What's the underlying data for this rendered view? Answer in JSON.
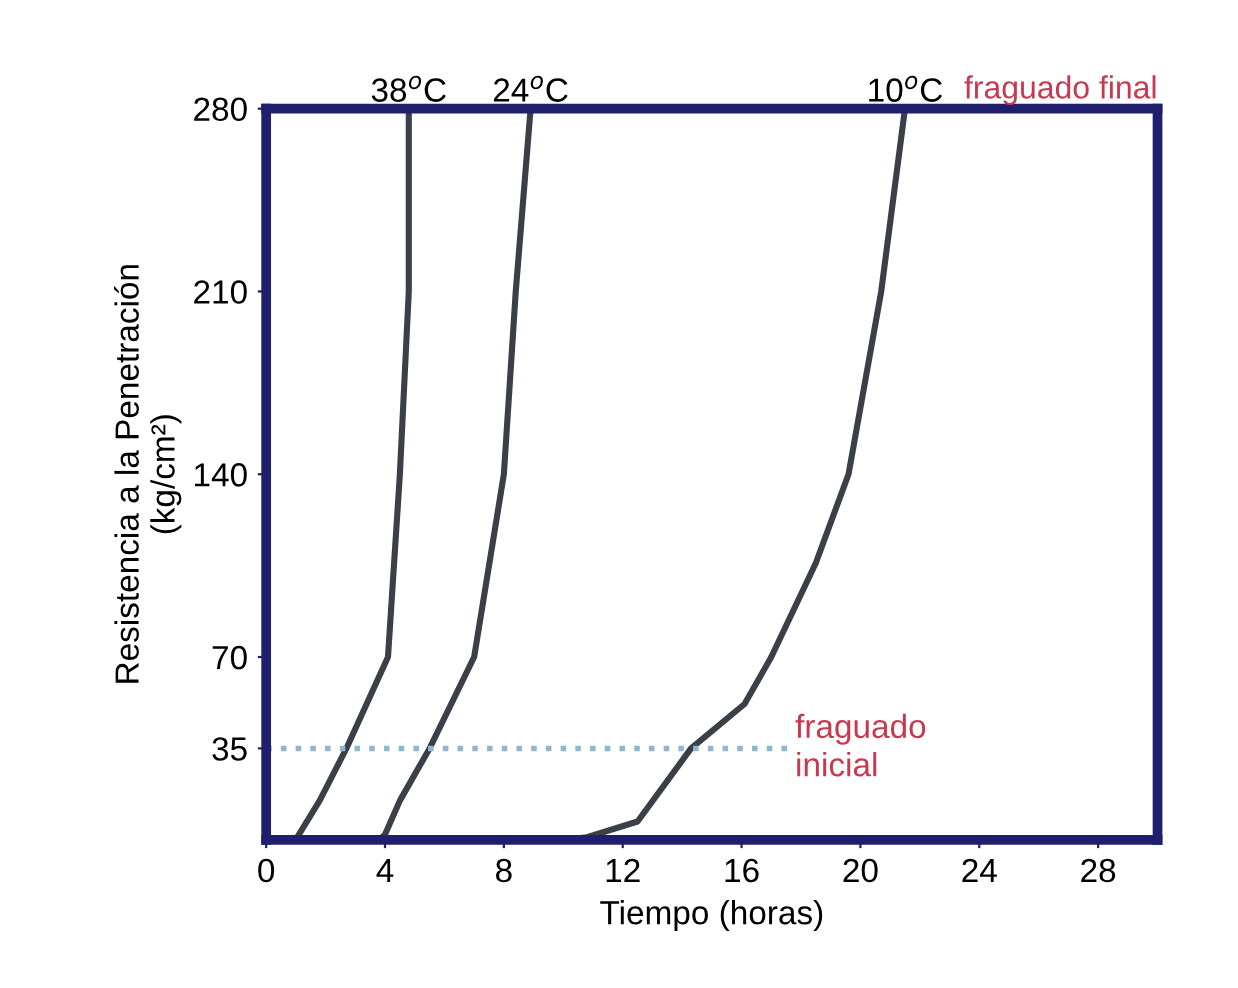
{
  "chart_data": {
    "type": "line",
    "xlabel": "Tiempo (horas)",
    "ylabel": "Resistencia a la Penetración\n(kg/cm²)",
    "xlim": [
      0,
      30
    ],
    "xticks": [
      0,
      4,
      8,
      12,
      16,
      20,
      24,
      28
    ],
    "ylim": [
      0,
      280
    ],
    "yticks": [
      35,
      70,
      140,
      210,
      280
    ],
    "grid": false,
    "marker": "none",
    "line_style": "solid",
    "series": [
      {
        "name": "38$^{o}$C",
        "color": "#3b4048",
        "x": [
          1.0,
          1.1,
          1.8,
          2.7,
          4.1,
          4.5,
          4.8,
          4.8
        ],
        "values": [
          0,
          2,
          15,
          35,
          70,
          140,
          210,
          280
        ]
      },
      {
        "name": "24$^{o}$C",
        "color": "#3b4048",
        "x": [
          3.8,
          4.0,
          4.5,
          5.5,
          7.0,
          8.0,
          8.4,
          8.9
        ],
        "values": [
          0,
          2,
          15,
          35,
          70,
          140,
          210,
          280
        ]
      },
      {
        "name": "10$^{o}$C",
        "color": "#3b4048",
        "x": [
          10.0,
          10.8,
          12.5,
          14.3,
          16.1,
          17.0,
          18.5,
          19.6,
          20.7,
          21.5
        ],
        "values": [
          0,
          1,
          7,
          35,
          52,
          70,
          106,
          140,
          210,
          280
        ]
      }
    ],
    "ref_lines": [
      {
        "axis": "y",
        "value": 35,
        "label": "fraguado\ninicial",
        "color": "#8fb8d0",
        "line_style": "dotted"
      }
    ],
    "annotations": [
      "fraguado final"
    ]
  }
}
